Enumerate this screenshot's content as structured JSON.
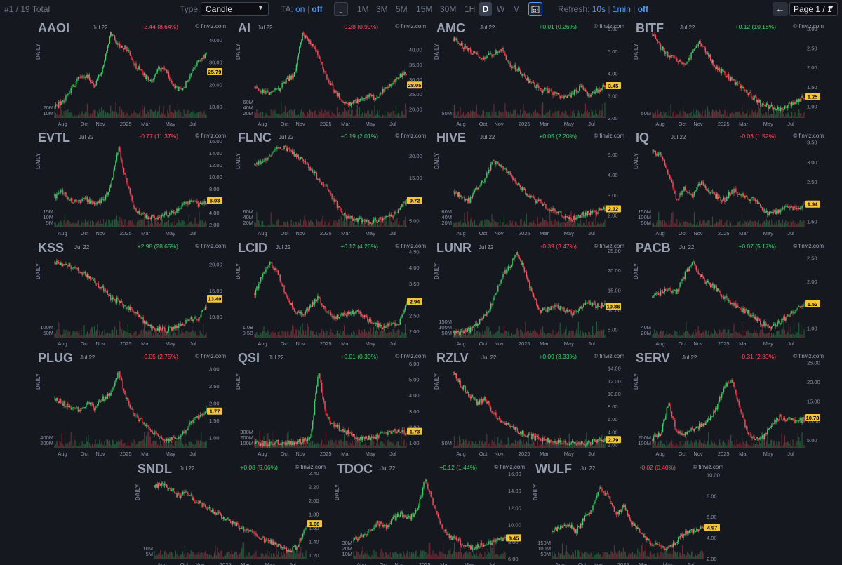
{
  "toolbar": {
    "total": "#1 / 19 Total",
    "type_label": "Type:",
    "type_value": "Candle",
    "ta_label": "TA:",
    "ta_on": "on",
    "ta_off": "off",
    "timeframes": [
      "1M",
      "3M",
      "5M",
      "15M",
      "30M",
      "1H",
      "D",
      "W",
      "M"
    ],
    "active_timeframe": "D",
    "refresh_label": "Refresh:",
    "refresh_10s": "10s",
    "refresh_1min": "1min",
    "refresh_off": "off",
    "page_value": "Page 1 / 1"
  },
  "watermark": "© finviz.com",
  "period_label": "DAILY",
  "x_labels": [
    "Aug",
    "Oct",
    "Nov",
    "2025",
    "Mar",
    "May",
    "Jul"
  ],
  "colors": {
    "up": "#3ecf6b",
    "down": "#ff4d5e",
    "price_tag": "#f2c43c",
    "background": "#16181f"
  },
  "charts": [
    {
      "ticker": "AAOI",
      "date": "Jul 22",
      "change": "-2.44 (8.64%)",
      "dir": "down",
      "price": "25.79",
      "y_ticks": [
        "40.00",
        "30.00",
        "20.00",
        "10.00"
      ],
      "y_range": [
        5,
        45
      ],
      "vol_ticks": [
        "20M",
        "10M"
      ],
      "path": [
        0.12,
        0.18,
        0.3,
        0.45,
        0.48,
        0.36,
        0.55,
        0.95,
        0.82,
        0.78,
        0.6,
        0.5,
        0.4,
        0.55,
        0.52,
        0.35,
        0.3,
        0.48,
        0.62,
        0.72
      ],
      "seed": 1
    },
    {
      "ticker": "AI",
      "date": "Jul 22",
      "change": "-0.28 (0.99%)",
      "dir": "down",
      "price": "28.05",
      "y_ticks": [
        "40.00",
        "35.00",
        "30.00",
        "25.00",
        "20.00"
      ],
      "y_range": [
        17,
        47
      ],
      "vol_ticks": [
        "60M",
        "40M",
        "20M"
      ],
      "path": [
        0.35,
        0.3,
        0.28,
        0.32,
        0.42,
        0.5,
        0.95,
        0.85,
        0.7,
        0.45,
        0.3,
        0.2,
        0.15,
        0.2,
        0.25,
        0.22,
        0.3,
        0.38,
        0.45,
        0.5
      ],
      "seed": 2
    },
    {
      "ticker": "AMC",
      "date": "Jul 22",
      "change": "+0.01 (0.26%)",
      "dir": "up",
      "price": "3.45",
      "y_ticks": [
        "6.00",
        "5.00",
        "4.00",
        "3.00",
        "2.00"
      ],
      "y_range": [
        2,
        6
      ],
      "vol_ticks": [
        "50M"
      ],
      "path": [
        0.88,
        0.82,
        0.75,
        0.7,
        0.68,
        0.72,
        0.78,
        0.6,
        0.55,
        0.45,
        0.38,
        0.32,
        0.3,
        0.26,
        0.22,
        0.28,
        0.35,
        0.25,
        0.3,
        0.36
      ],
      "seed": 3
    },
    {
      "ticker": "BITF",
      "date": "Jul 22",
      "change": "+0.12 (10.18%)",
      "dir": "up",
      "price": "1.25",
      "y_ticks": [
        "3.00",
        "2.50",
        "2.00",
        "1.50",
        "1.00"
      ],
      "y_range": [
        0.7,
        3
      ],
      "vol_ticks": [
        "50M"
      ],
      "path": [
        0.95,
        0.8,
        0.7,
        0.65,
        0.6,
        0.72,
        0.85,
        0.7,
        0.55,
        0.5,
        0.42,
        0.35,
        0.28,
        0.2,
        0.15,
        0.12,
        0.1,
        0.14,
        0.18,
        0.24
      ],
      "seed": 4
    },
    {
      "ticker": "EVTL",
      "date": "Jul 22",
      "change": "-0.77 (11.37%)",
      "dir": "down",
      "price": "6.03",
      "y_ticks": [
        "16.00",
        "14.00",
        "12.00",
        "10.00",
        "8.00",
        "6.00",
        "4.00",
        "2.00"
      ],
      "y_range": [
        1.5,
        16.5
      ],
      "vol_ticks": [
        "15M",
        "10M",
        "5M"
      ],
      "path": [
        0.35,
        0.4,
        0.3,
        0.28,
        0.32,
        0.25,
        0.3,
        0.45,
        0.9,
        0.5,
        0.2,
        0.15,
        0.1,
        0.12,
        0.15,
        0.18,
        0.25,
        0.3,
        0.26,
        0.28
      ],
      "seed": 5
    },
    {
      "ticker": "FLNC",
      "date": "Jul 22",
      "change": "+0.19 (2.01%)",
      "dir": "up",
      "price": "9.72",
      "y_ticks": [
        "20.00",
        "15.00",
        "10.00",
        "5.00"
      ],
      "y_range": [
        3.5,
        24
      ],
      "vol_ticks": [
        "60M",
        "40M",
        "20M"
      ],
      "path": [
        0.7,
        0.75,
        0.8,
        0.9,
        0.88,
        0.82,
        0.75,
        0.65,
        0.55,
        0.45,
        0.3,
        0.15,
        0.1,
        0.08,
        0.06,
        0.07,
        0.1,
        0.12,
        0.2,
        0.3
      ],
      "seed": 6
    },
    {
      "ticker": "HIVE",
      "date": "Jul 22",
      "change": "+0.05 (2.20%)",
      "dir": "up",
      "price": "2.32",
      "y_ticks": [
        "5.00",
        "4.00",
        "3.00",
        "2.00"
      ],
      "y_range": [
        1.4,
        5.8
      ],
      "vol_ticks": [
        "60M",
        "40M",
        "20M"
      ],
      "path": [
        0.4,
        0.35,
        0.3,
        0.45,
        0.55,
        0.75,
        0.68,
        0.6,
        0.5,
        0.4,
        0.32,
        0.28,
        0.22,
        0.18,
        0.12,
        0.1,
        0.14,
        0.16,
        0.18,
        0.2
      ],
      "seed": 7
    },
    {
      "ticker": "IQ",
      "date": "Jul 22",
      "change": "-0.03 (1.52%)",
      "dir": "down",
      "price": "1.94",
      "y_ticks": [
        "3.50",
        "3.00",
        "2.50",
        "2.00",
        "1.50"
      ],
      "y_range": [
        1.35,
        3.6
      ],
      "vol_ticks": [
        "150M",
        "100M",
        "50M"
      ],
      "path": [
        0.85,
        0.82,
        0.6,
        0.3,
        0.45,
        0.35,
        0.5,
        0.4,
        0.35,
        0.3,
        0.42,
        0.38,
        0.32,
        0.3,
        0.18,
        0.15,
        0.2,
        0.22,
        0.2,
        0.25
      ],
      "seed": 8
    },
    {
      "ticker": "KSS",
      "date": "Jul 22",
      "change": "+2.98 (28.65%)",
      "dir": "up",
      "price": "13.40",
      "y_ticks": [
        "20.00",
        "15.00",
        "10.00"
      ],
      "y_range": [
        6,
        23
      ],
      "vol_ticks": [
        "100M",
        "50M"
      ],
      "path": [
        0.85,
        0.82,
        0.8,
        0.75,
        0.7,
        0.62,
        0.55,
        0.45,
        0.4,
        0.35,
        0.28,
        0.2,
        0.12,
        0.1,
        0.08,
        0.12,
        0.15,
        0.2,
        0.22,
        0.35
      ],
      "seed": 9
    },
    {
      "ticker": "LCID",
      "date": "Jul 22",
      "change": "+0.12 (4.26%)",
      "dir": "up",
      "price": "2.94",
      "y_ticks": [
        "4.50",
        "4.00",
        "3.50",
        "3.00",
        "2.50",
        "2.00"
      ],
      "y_range": [
        1.8,
        4.6
      ],
      "vol_ticks": [
        "1.0B",
        "0.5B"
      ],
      "path": [
        0.5,
        0.7,
        0.85,
        0.7,
        0.45,
        0.3,
        0.25,
        0.35,
        0.45,
        0.3,
        0.22,
        0.25,
        0.28,
        0.3,
        0.22,
        0.15,
        0.12,
        0.15,
        0.14,
        0.38
      ],
      "seed": 10
    },
    {
      "ticker": "LUNR",
      "date": "Jul 22",
      "change": "-0.39 (3.47%)",
      "dir": "down",
      "price": "10.86",
      "y_ticks": [
        "25.00",
        "20.00",
        "15.00",
        "10.00",
        "5.00"
      ],
      "y_range": [
        3,
        25.5
      ],
      "vol_ticks": [
        "150M",
        "100M",
        "50M"
      ],
      "path": [
        0.05,
        0.06,
        0.08,
        0.15,
        0.25,
        0.4,
        0.65,
        0.8,
        0.95,
        0.75,
        0.45,
        0.3,
        0.32,
        0.35,
        0.3,
        0.28,
        0.35,
        0.38,
        0.36,
        0.36
      ],
      "seed": 11
    },
    {
      "ticker": "PACB",
      "date": "Jul 22",
      "change": "+0.07 (5.17%)",
      "dir": "up",
      "price": "1.52",
      "y_ticks": [
        "2.50",
        "2.00",
        "1.50",
        "1.00"
      ],
      "y_range": [
        0.8,
        2.7
      ],
      "vol_ticks": [
        "40M",
        "20M"
      ],
      "path": [
        0.45,
        0.5,
        0.55,
        0.5,
        0.7,
        0.85,
        0.7,
        0.6,
        0.55,
        0.45,
        0.38,
        0.32,
        0.28,
        0.2,
        0.15,
        0.12,
        0.18,
        0.25,
        0.3,
        0.38
      ],
      "seed": 12
    },
    {
      "ticker": "PLUG",
      "date": "Jul 22",
      "change": "-0.05 (2.75%)",
      "dir": "down",
      "price": "1.77",
      "y_ticks": [
        "3.00",
        "2.50",
        "2.00",
        "1.50",
        "1.00"
      ],
      "y_range": [
        0.7,
        3.3
      ],
      "vol_ticks": [
        "400M",
        "200M"
      ],
      "path": [
        0.55,
        0.5,
        0.45,
        0.42,
        0.5,
        0.45,
        0.55,
        0.6,
        0.85,
        0.55,
        0.35,
        0.3,
        0.2,
        0.12,
        0.08,
        0.1,
        0.15,
        0.28,
        0.35,
        0.42
      ],
      "seed": 13
    },
    {
      "ticker": "QSI",
      "date": "Jul 22",
      "change": "+0.01 (0.30%)",
      "dir": "up",
      "price": "1.73",
      "y_ticks": [
        "6.00",
        "5.00",
        "4.00",
        "3.00",
        "2.00",
        "1.00"
      ],
      "y_range": [
        0.7,
        6.3
      ],
      "vol_ticks": [
        "300M",
        "200M",
        "100M"
      ],
      "path": [
        0.05,
        0.04,
        0.05,
        0.06,
        0.05,
        0.06,
        0.08,
        0.1,
        0.85,
        0.35,
        0.25,
        0.2,
        0.15,
        0.12,
        0.1,
        0.12,
        0.15,
        0.18,
        0.2,
        0.18
      ],
      "seed": 14
    },
    {
      "ticker": "RZLV",
      "date": "Jul 22",
      "change": "+0.09 (3.33%)",
      "dir": "up",
      "price": "2.79",
      "y_ticks": [
        "14.00",
        "12.00",
        "10.00",
        "8.00",
        "6.00",
        "4.00",
        "2.00"
      ],
      "y_range": [
        1.5,
        15.5
      ],
      "vol_ticks": [
        "50M"
      ],
      "path": [
        0.85,
        0.7,
        0.6,
        0.5,
        0.55,
        0.4,
        0.3,
        0.25,
        0.2,
        0.15,
        0.12,
        0.1,
        0.08,
        0.06,
        0.07,
        0.06,
        0.05,
        0.06,
        0.08,
        0.1
      ],
      "seed": 15
    },
    {
      "ticker": "SERV",
      "date": "Jul 22",
      "change": "-0.31 (2.80%)",
      "dir": "down",
      "price": "10.78",
      "y_ticks": [
        "25.00",
        "20.00",
        "15.00",
        "10.00",
        "5.00"
      ],
      "y_range": [
        3,
        26
      ],
      "vol_ticks": [
        "200M",
        "100M"
      ],
      "path": [
        0.1,
        0.15,
        0.5,
        0.2,
        0.15,
        0.2,
        0.25,
        0.3,
        0.45,
        0.7,
        0.75,
        0.4,
        0.15,
        0.1,
        0.12,
        0.28,
        0.35,
        0.32,
        0.3,
        0.32
      ],
      "seed": 16
    },
    {
      "ticker": "SNDL",
      "date": "Jul 22",
      "change": "+0.08 (5.06%)",
      "dir": "up",
      "price": "1.66",
      "y_ticks": [
        "2.40",
        "2.20",
        "2.00",
        "1.80",
        "1.60",
        "1.40",
        "1.20"
      ],
      "y_range": [
        1.15,
        2.45
      ],
      "vol_ticks": [
        "10M",
        "5M"
      ],
      "path": [
        0.8,
        0.85,
        0.78,
        0.7,
        0.75,
        0.65,
        0.6,
        0.55,
        0.5,
        0.45,
        0.4,
        0.35,
        0.3,
        0.25,
        0.2,
        0.18,
        0.12,
        0.08,
        0.15,
        0.35
      ],
      "seed": 17
    },
    {
      "ticker": "TDOC",
      "date": "Jul 22",
      "change": "+0.12 (1.44%)",
      "dir": "up",
      "price": "8.45",
      "y_ticks": [
        "16.00",
        "14.00",
        "12.00",
        "10.00",
        "8.00",
        "6.00"
      ],
      "y_range": [
        6,
        16.5
      ],
      "vol_ticks": [
        "30M",
        "20M",
        "10M"
      ],
      "path": [
        0.2,
        0.25,
        0.3,
        0.4,
        0.35,
        0.45,
        0.5,
        0.45,
        0.55,
        0.9,
        0.6,
        0.35,
        0.25,
        0.2,
        0.15,
        0.12,
        0.15,
        0.18,
        0.2,
        0.22
      ],
      "seed": 18
    },
    {
      "ticker": "WULF",
      "date": "Jul 22",
      "change": "-0.02 (0.40%)",
      "dir": "down",
      "price": "4.97",
      "y_ticks": [
        "10.00",
        "8.00",
        "6.00",
        "4.00",
        "2.00"
      ],
      "y_range": [
        2,
        10.5
      ],
      "vol_ticks": [
        "150M",
        "100M",
        "50M"
      ],
      "path": [
        0.3,
        0.35,
        0.4,
        0.3,
        0.45,
        0.55,
        0.8,
        0.7,
        0.5,
        0.6,
        0.4,
        0.3,
        0.2,
        0.15,
        0.12,
        0.15,
        0.25,
        0.3,
        0.32,
        0.35
      ],
      "seed": 19
    }
  ]
}
